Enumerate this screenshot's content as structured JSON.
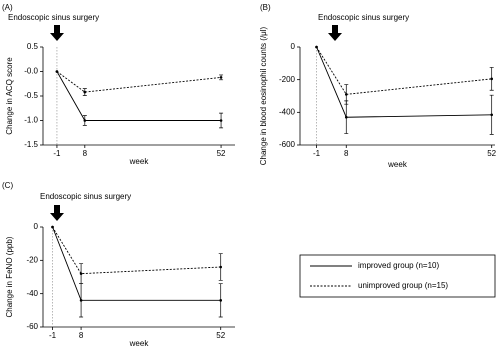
{
  "chart_data": [
    {
      "type": "line",
      "panel": "(A)",
      "annotation": "Endoscopic sinus surgery",
      "xlabel": "week",
      "ylabel": "Change in ACQ score",
      "x": [
        -1,
        8,
        52
      ],
      "xlim": [
        -5.5,
        56.5
      ],
      "xticks": [
        -1,
        8,
        52
      ],
      "ylim": [
        -1.5,
        0.5
      ],
      "yticks": [
        0.5,
        {
          "value": 0,
          "label": "-0.0"
        },
        -0.5,
        {
          "value": -1,
          "label": "-1.0"
        },
        -1.5
      ],
      "vline": -1,
      "series": [
        {
          "color": "#000000",
          "linestyle": "solid",
          "values": [
            0,
            -1.0,
            -1.0
          ],
          "errors": [
            null,
            0.1,
            0.15
          ]
        },
        {
          "color": "#000000",
          "linestyle": "dashed",
          "values": [
            0,
            -0.42,
            -0.12
          ],
          "errors": [
            null,
            0.07,
            0.05
          ]
        }
      ]
    },
    {
      "type": "line",
      "panel": "(B)",
      "annotation": "Endoscopic sinus surgery",
      "xlabel": "week",
      "ylabel": "Change in blood eosinophil counts (/μl)",
      "x": [
        -1,
        8,
        52
      ],
      "xlim": [
        -6,
        53
      ],
      "xticks": [
        -1,
        8,
        52
      ],
      "ylim": [
        -600,
        0
      ],
      "yticks": [
        0,
        -200,
        -400,
        -600
      ],
      "vline": -1,
      "series": [
        {
          "color": "#000000",
          "linestyle": "solid",
          "values": [
            0,
            -430,
            -415
          ],
          "errors": [
            null,
            100,
            120
          ]
        },
        {
          "color": "#000000",
          "linestyle": "dashed",
          "values": [
            0,
            -290,
            -195
          ],
          "errors": [
            null,
            60,
            70
          ]
        }
      ]
    },
    {
      "type": "line",
      "panel": "(C)",
      "annotation": "Endoscopic sinus surgery",
      "xlabel": "week",
      "ylabel": "Change in FeNO (ppb)",
      "x": [
        -1,
        8,
        52
      ],
      "xlim": [
        -4,
        56.5
      ],
      "xticks": [
        -1,
        8,
        52
      ],
      "ylim": [
        -60,
        0
      ],
      "yticks": [
        0,
        -20,
        -40,
        -60
      ],
      "vline": -1,
      "series": [
        {
          "name": "improved group (n=10)",
          "color": "#000000",
          "linestyle": "solid",
          "values": [
            0,
            -44,
            -44
          ],
          "errors": [
            null,
            10,
            10
          ]
        },
        {
          "name": "unimproved group (n=15)",
          "color": "#000000",
          "linestyle": "dashed",
          "values": [
            0,
            -28,
            -24
          ],
          "errors": [
            null,
            6,
            8
          ]
        }
      ]
    }
  ]
}
